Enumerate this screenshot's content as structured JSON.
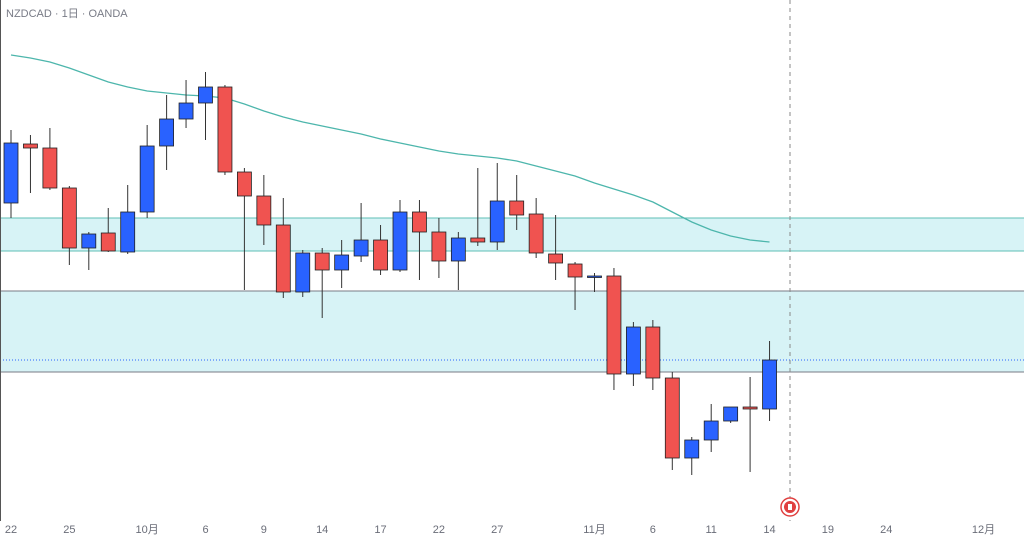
{
  "chart_data": {
    "type": "candlestick",
    "title": "NZDCAD · 1日 · OANDA",
    "categories": [
      "22",
      null,
      null,
      "25",
      null,
      null,
      null,
      "10月",
      null,
      null,
      "6",
      null,
      null,
      "9",
      null,
      null,
      "14",
      null,
      null,
      "17",
      null,
      null,
      "22",
      null,
      null,
      "27",
      null,
      null,
      null,
      null,
      "11月",
      null,
      null,
      "6",
      null,
      null,
      "11",
      null,
      null,
      "14",
      null,
      null,
      "19",
      null,
      null,
      "24",
      null,
      null,
      null,
      null,
      "12月"
    ],
    "open": [
      0.8497,
      0.8556,
      0.8552,
      0.8512,
      0.8452,
      0.8467,
      0.8448,
      0.8488,
      0.8554,
      0.8581,
      0.8597,
      0.8613,
      0.8528,
      0.8504,
      0.8475,
      0.8408,
      0.8447,
      0.843,
      0.8444,
      0.846,
      0.843,
      0.8488,
      0.8468,
      0.8439,
      0.8462,
      0.8458,
      0.8499,
      0.8486,
      0.8446,
      0.8436,
      0.8423,
      0.8424,
      0.8326,
      0.8373,
      0.8322,
      0.8242,
      0.826,
      0.8279,
      0.8293,
      0.8291,
      null,
      null,
      null,
      null,
      null,
      null,
      null,
      null,
      null,
      null,
      null
    ],
    "high": [
      0.857,
      0.8565,
      0.8572,
      0.8514,
      0.8468,
      0.8492,
      0.8515,
      0.8575,
      0.8605,
      0.862,
      0.8628,
      0.8615,
      0.8532,
      0.8525,
      0.8502,
      0.845,
      0.8452,
      0.846,
      0.8497,
      0.8475,
      0.85,
      0.85,
      0.8482,
      0.8468,
      0.8532,
      0.8537,
      0.8525,
      0.8502,
      0.8485,
      0.8438,
      0.8427,
      0.8432,
      0.8378,
      0.838,
      0.8328,
      0.8263,
      0.8296,
      0.8293,
      0.8323,
      0.8359,
      null,
      null,
      null,
      null,
      null,
      null,
      null,
      null,
      null,
      null,
      null
    ],
    "low": [
      0.8482,
      0.8507,
      0.851,
      0.8435,
      0.843,
      0.8448,
      0.8446,
      0.8482,
      0.853,
      0.8572,
      0.856,
      0.8525,
      0.841,
      0.8455,
      0.8402,
      0.8403,
      0.8382,
      0.8412,
      0.8438,
      0.8425,
      0.8428,
      0.842,
      0.8422,
      0.841,
      0.8454,
      0.845,
      0.847,
      0.8442,
      0.842,
      0.839,
      0.8408,
      0.831,
      0.8314,
      0.831,
      0.823,
      0.8225,
      0.8248,
      0.8277,
      0.8228,
      0.8279,
      null,
      null,
      null,
      null,
      null,
      null,
      null,
      null,
      null,
      null,
      null
    ],
    "close": [
      0.8557,
      0.8552,
      0.8512,
      0.8452,
      0.8466,
      0.8449,
      0.8488,
      0.8554,
      0.8581,
      0.8597,
      0.8613,
      0.8528,
      0.8504,
      0.8475,
      0.8408,
      0.8447,
      0.843,
      0.8445,
      0.846,
      0.843,
      0.8488,
      0.8468,
      0.8439,
      0.8462,
      0.8458,
      0.8499,
      0.8485,
      0.8447,
      0.8437,
      0.8423,
      0.8424,
      0.8326,
      0.8373,
      0.8322,
      0.8242,
      0.826,
      0.8279,
      0.8293,
      0.8291,
      0.834,
      null,
      null,
      null,
      null,
      null,
      null,
      null,
      null,
      null,
      null,
      null
    ],
    "ma": [
      0.8645,
      0.8642,
      0.8638,
      0.8632,
      0.8625,
      0.8618,
      0.8613,
      0.8609,
      0.8607,
      0.8605,
      0.8604,
      0.8602,
      0.8596,
      0.8589,
      0.8583,
      0.8578,
      0.8574,
      0.857,
      0.8566,
      0.8561,
      0.8557,
      0.8553,
      0.8549,
      0.8546,
      0.8544,
      0.8542,
      0.8539,
      0.8534,
      0.8529,
      0.8524,
      0.8517,
      0.8511,
      0.8505,
      0.8498,
      0.8488,
      0.8478,
      0.847,
      0.8464,
      0.846,
      0.8458,
      null,
      null,
      null,
      null,
      null,
      null,
      null,
      null,
      null,
      null,
      null
    ],
    "ma_color": "#4db6ac",
    "up_color": "#2962ff",
    "down_color": "#f05350",
    "zones": [
      {
        "from": 0.8449,
        "to": 0.8482,
        "fill": "#d7f3f6",
        "edge": "#5fbfb6"
      },
      {
        "from": 0.8328,
        "to": 0.8409,
        "fill": "#d7f3f6",
        "edge": "#787b86"
      }
    ],
    "ylim": [
      0.818,
      0.87
    ]
  }
}
